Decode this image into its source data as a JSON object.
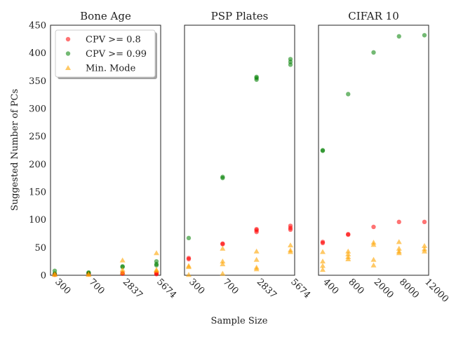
{
  "figure": {
    "xlabel": "Sample Size",
    "ylabel": "Suggested Number of PCs"
  },
  "legend": {
    "placement": "upper-left of first panel",
    "items": [
      {
        "label": "CPV >= 0.8",
        "color": "#ff0000",
        "marker": "circle"
      },
      {
        "label": "CPV >= 0.99",
        "color": "#008000",
        "marker": "circle"
      },
      {
        "label": "Min. Mode",
        "color": "#ffa500",
        "marker": "triangle"
      }
    ]
  },
  "chart_data": [
    {
      "type": "scatter",
      "title": "Bone Age",
      "categories": [
        "300",
        "700",
        "2837",
        "5674"
      ],
      "ylim": [
        0,
        450
      ],
      "yticks": [
        0,
        50,
        100,
        150,
        200,
        250,
        300,
        350,
        400,
        450
      ],
      "series": [
        {
          "name": "CPV >= 0.8",
          "color": "#ff0000",
          "marker": "circle",
          "points": [
            [
              0,
              1
            ],
            [
              0,
              2
            ],
            [
              1,
              2
            ],
            [
              1,
              3
            ],
            [
              2,
              3
            ],
            [
              2,
              4
            ],
            [
              3,
              2
            ],
            [
              3,
              3
            ],
            [
              3,
              5
            ]
          ]
        },
        {
          "name": "CPV >= 0.99",
          "color": "#008000",
          "marker": "circle",
          "points": [
            [
              0,
              3
            ],
            [
              0,
              8
            ],
            [
              1,
              4
            ],
            [
              1,
              5
            ],
            [
              2,
              15
            ],
            [
              2,
              16
            ],
            [
              3,
              18
            ],
            [
              3,
              20
            ],
            [
              3,
              25
            ]
          ]
        },
        {
          "name": "Min. Mode",
          "color": "#ffa500",
          "marker": "triangle",
          "points": [
            [
              0,
              1
            ],
            [
              0,
              2
            ],
            [
              1,
              1
            ],
            [
              1,
              2
            ],
            [
              2,
              5
            ],
            [
              2,
              10
            ],
            [
              2,
              27
            ],
            [
              3,
              8
            ],
            [
              3,
              10
            ],
            [
              3,
              40
            ]
          ]
        }
      ]
    },
    {
      "type": "scatter",
      "title": "PSP Plates",
      "categories": [
        "300",
        "700",
        "2837",
        "5674"
      ],
      "ylim": [
        0,
        450
      ],
      "series": [
        {
          "name": "CPV >= 0.8",
          "color": "#ff0000",
          "marker": "circle",
          "points": [
            [
              0,
              29
            ],
            [
              0,
              31
            ],
            [
              1,
              56
            ],
            [
              1,
              57
            ],
            [
              2,
              78
            ],
            [
              2,
              81
            ],
            [
              2,
              83
            ],
            [
              3,
              82
            ],
            [
              3,
              85
            ],
            [
              3,
              89
            ]
          ]
        },
        {
          "name": "CPV >= 0.99",
          "color": "#008000",
          "marker": "circle",
          "points": [
            [
              0,
              67
            ],
            [
              1,
              175
            ],
            [
              1,
              177
            ],
            [
              2,
              352
            ],
            [
              2,
              355
            ],
            [
              2,
              357
            ],
            [
              3,
              379
            ],
            [
              3,
              384
            ],
            [
              3,
              389
            ]
          ]
        },
        {
          "name": "Min. Mode",
          "color": "#ffa500",
          "marker": "triangle",
          "points": [
            [
              0,
              1
            ],
            [
              0,
              15
            ],
            [
              0,
              17
            ],
            [
              1,
              3
            ],
            [
              1,
              20
            ],
            [
              1,
              25
            ],
            [
              1,
              48
            ],
            [
              2,
              11
            ],
            [
              2,
              14
            ],
            [
              2,
              28
            ],
            [
              2,
              43
            ],
            [
              3,
              42
            ],
            [
              3,
              45
            ],
            [
              3,
              54
            ]
          ]
        }
      ]
    },
    {
      "type": "scatter",
      "title": "CIFAR 10",
      "categories": [
        "400",
        "800",
        "2000",
        "8000",
        "12000"
      ],
      "ylim": [
        0,
        450
      ],
      "series": [
        {
          "name": "CPV >= 0.8",
          "color": "#ff0000",
          "marker": "circle",
          "points": [
            [
              0,
              58
            ],
            [
              0,
              60
            ],
            [
              1,
              73
            ],
            [
              1,
              74
            ],
            [
              2,
              87
            ],
            [
              3,
              96
            ],
            [
              4,
              96
            ]
          ]
        },
        {
          "name": "CPV >= 0.99",
          "color": "#008000",
          "marker": "circle",
          "points": [
            [
              0,
              224
            ],
            [
              0,
              225
            ],
            [
              1,
              326
            ],
            [
              2,
              401
            ],
            [
              3,
              430
            ],
            [
              4,
              432
            ]
          ]
        },
        {
          "name": "Min. Mode",
          "color": "#ffa500",
          "marker": "triangle",
          "points": [
            [
              0,
              10
            ],
            [
              0,
              17
            ],
            [
              0,
              25
            ],
            [
              0,
              42
            ],
            [
              1,
              29
            ],
            [
              1,
              33
            ],
            [
              1,
              38
            ],
            [
              1,
              43
            ],
            [
              2,
              18
            ],
            [
              2,
              28
            ],
            [
              2,
              55
            ],
            [
              2,
              59
            ],
            [
              3,
              40
            ],
            [
              3,
              43
            ],
            [
              3,
              48
            ],
            [
              3,
              60
            ],
            [
              4,
              43
            ],
            [
              4,
              47
            ],
            [
              4,
              53
            ]
          ]
        }
      ]
    }
  ]
}
